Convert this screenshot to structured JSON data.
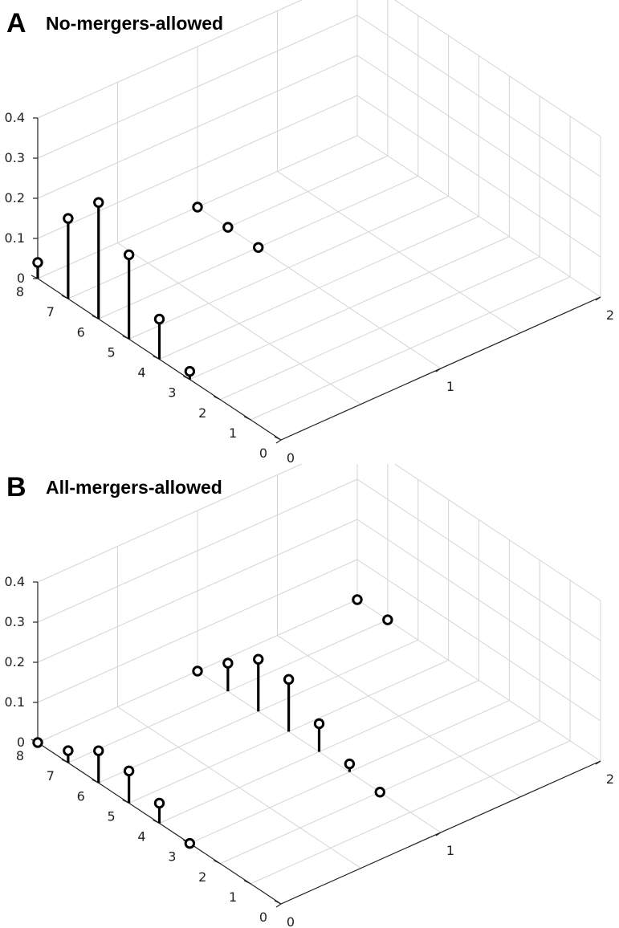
{
  "chart_data": [
    {
      "type": "stem3d",
      "panel_label": "A",
      "title": "No-mergers-allowed",
      "x_ticks": [
        "0",
        "1",
        "2"
      ],
      "y_ticks": [
        "0",
        "1",
        "2",
        "3",
        "4",
        "5",
        "6",
        "7",
        "8"
      ],
      "z_ticks": [
        "0",
        "0.1",
        "0.2",
        "0.3",
        "0.4"
      ],
      "xlim": [
        0,
        2
      ],
      "ylim": [
        0,
        8
      ],
      "zlim": [
        0,
        0.4
      ],
      "grid": true,
      "points": [
        {
          "x": 0,
          "y": 8,
          "z": 0.04
        },
        {
          "x": 0,
          "y": 7,
          "z": 0.2
        },
        {
          "x": 0,
          "y": 6,
          "z": 0.29
        },
        {
          "x": 0,
          "y": 5,
          "z": 0.21
        },
        {
          "x": 0,
          "y": 4,
          "z": 0.1
        },
        {
          "x": 0,
          "y": 3,
          "z": 0.02
        },
        {
          "x": 1,
          "y": 8,
          "z": 0.0
        },
        {
          "x": 1,
          "y": 7,
          "z": 0.0
        },
        {
          "x": 1,
          "y": 6,
          "z": 0.0
        }
      ]
    },
    {
      "type": "stem3d",
      "panel_label": "B",
      "title": "All-mergers-allowed",
      "x_ticks": [
        "0",
        "1",
        "2"
      ],
      "y_ticks": [
        "0",
        "1",
        "2",
        "3",
        "4",
        "5",
        "6",
        "7",
        "8"
      ],
      "z_ticks": [
        "0",
        "0.1",
        "0.2",
        "0.3",
        "0.4"
      ],
      "xlim": [
        0,
        2
      ],
      "ylim": [
        0,
        8
      ],
      "zlim": [
        0,
        0.4
      ],
      "grid": true,
      "points": [
        {
          "x": 0,
          "y": 8,
          "z": 0.0
        },
        {
          "x": 0,
          "y": 7,
          "z": 0.03
        },
        {
          "x": 0,
          "y": 6,
          "z": 0.08
        },
        {
          "x": 0,
          "y": 5,
          "z": 0.08
        },
        {
          "x": 0,
          "y": 4,
          "z": 0.05
        },
        {
          "x": 0,
          "y": 3,
          "z": 0.0
        },
        {
          "x": 1,
          "y": 8,
          "z": 0.0
        },
        {
          "x": 1,
          "y": 7,
          "z": 0.07
        },
        {
          "x": 1,
          "y": 6,
          "z": 0.13
        },
        {
          "x": 1,
          "y": 5,
          "z": 0.13
        },
        {
          "x": 1,
          "y": 4,
          "z": 0.07
        },
        {
          "x": 1,
          "y": 3,
          "z": 0.02
        },
        {
          "x": 1,
          "y": 2,
          "z": 0.0
        },
        {
          "x": 2,
          "y": 8,
          "z": 0.0
        },
        {
          "x": 2,
          "y": 7,
          "z": 0.0
        }
      ]
    }
  ]
}
